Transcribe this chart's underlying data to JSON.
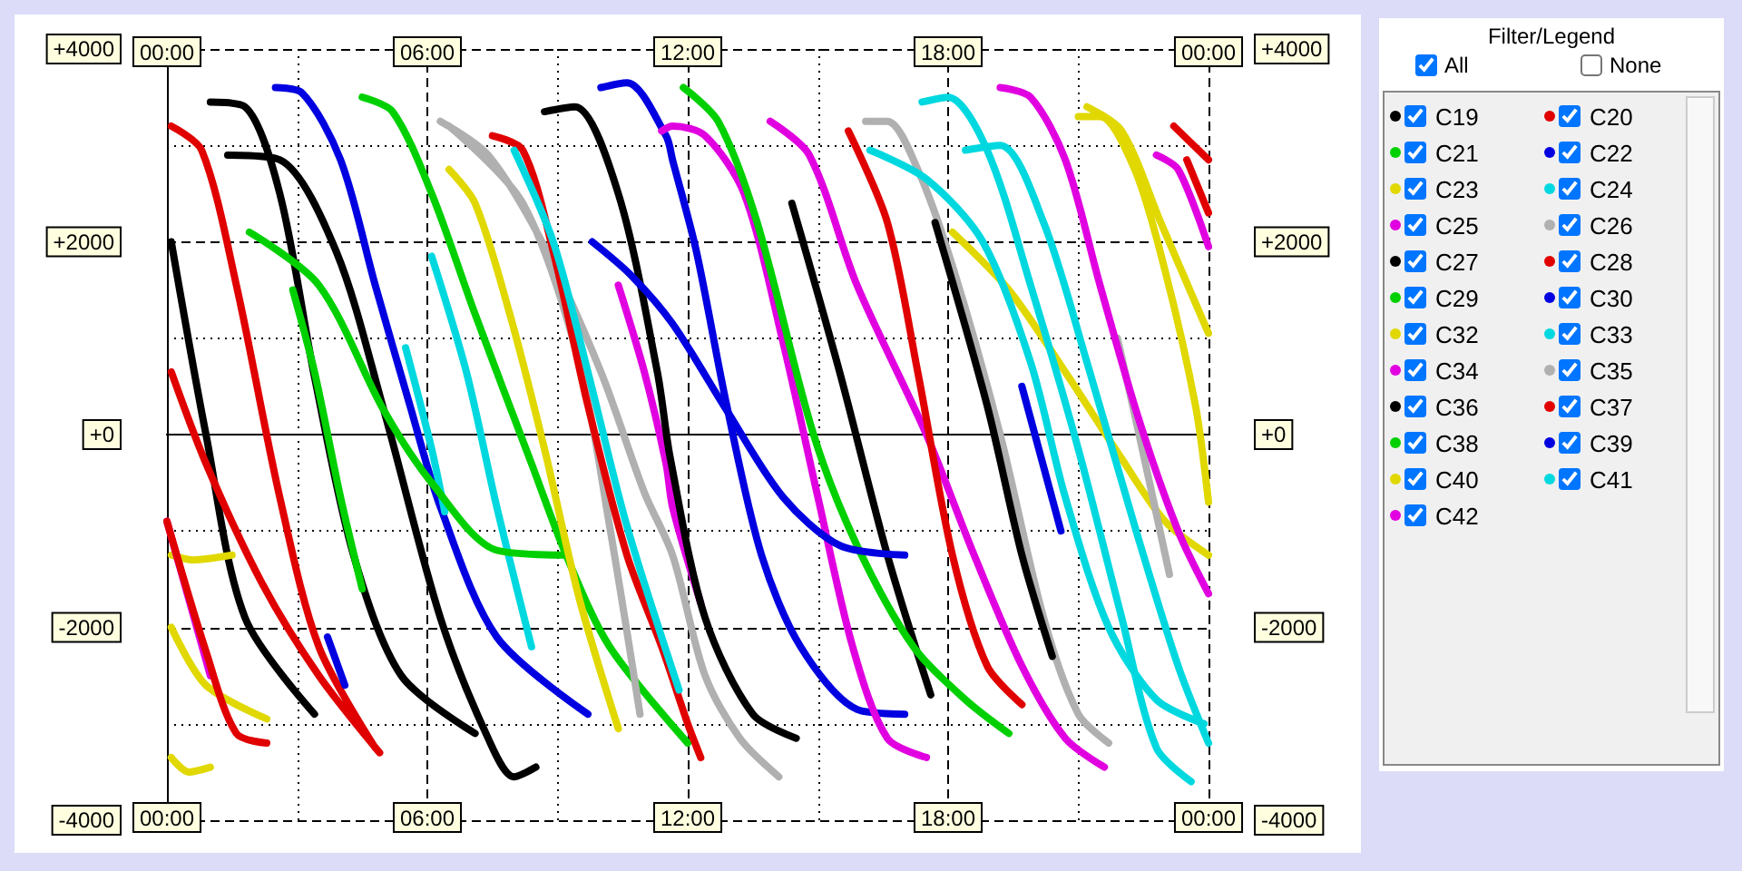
{
  "chart_data": {
    "type": "line",
    "legend_title": "Filter/Legend",
    "legend": "right",
    "grid": true,
    "marker": "none",
    "line_style": "solid",
    "annotations": [
      "All",
      "None"
    ],
    "xlim": [
      0,
      24
    ],
    "xticks": [
      {
        "value": 0,
        "label": "00:00"
      },
      {
        "value": 3,
        "label": null
      },
      {
        "value": 6,
        "label": "06:00"
      },
      {
        "value": 9,
        "label": null
      },
      {
        "value": 12,
        "label": "12:00"
      },
      {
        "value": 15,
        "label": null
      },
      {
        "value": 18,
        "label": "18:00"
      },
      {
        "value": 21,
        "label": null
      },
      {
        "value": 24,
        "label": "00:00"
      }
    ],
    "x2lim": [
      0,
      24
    ],
    "x2ticks": [
      {
        "value": 0,
        "label": "00:00"
      },
      {
        "value": 3,
        "label": null
      },
      {
        "value": 6,
        "label": "06:00"
      },
      {
        "value": 9,
        "label": null
      },
      {
        "value": 12,
        "label": "12:00"
      },
      {
        "value": 15,
        "label": null
      },
      {
        "value": 18,
        "label": "18:00"
      },
      {
        "value": 21,
        "label": null
      },
      {
        "value": 24,
        "label": "00:00"
      }
    ],
    "ylim": [
      -4000,
      4000
    ],
    "yticks": [
      -4000,
      {
        "value": -3000,
        "label": null
      },
      -2000,
      {
        "value": -1000,
        "label": null
      },
      {
        "value": 0,
        "label": "+0"
      },
      {
        "value": 1000,
        "label": null
      },
      {
        "value": 2000,
        "label": "+2000"
      },
      {
        "value": 3000,
        "label": null
      },
      {
        "value": 4000,
        "label": "+4000"
      }
    ],
    "y2lim": [
      -4000,
      4000
    ],
    "y2ticks": [
      -4000,
      {
        "value": -3000,
        "label": null
      },
      -2000,
      {
        "value": -1000,
        "label": null
      },
      {
        "value": 0,
        "label": "+0"
      },
      {
        "value": 1000,
        "label": null
      },
      {
        "value": 2000,
        "label": "+2000"
      },
      {
        "value": 3000,
        "label": null
      },
      {
        "value": 4000,
        "label": "+4000"
      }
    ],
    "series": [
      {
        "name": "C19",
        "color": "#000000",
        "x": [
          0.1,
          0.9,
          1.8,
          3.4,
          null,
          1.0,
          1.8,
          2.6,
          3.4,
          4.3,
          5.4,
          7.1
        ],
        "values": [
          2000,
          0,
          -1900,
          -2900,
          null,
          3450,
          3400,
          2500,
          600,
          -1250,
          -2500,
          -3100
        ]
      },
      {
        "name": "C20",
        "color": "#e00000",
        "x": [
          0.1,
          0.8,
          1.6,
          2.6,
          3.5,
          4.8,
          null,
          0.1,
          0.9,
          2.2,
          3.5,
          4.9
        ],
        "values": [
          3200,
          2950,
          1550,
          -650,
          -2200,
          -3250,
          null,
          650,
          -300,
          -1550,
          -2500,
          -3300
        ]
      },
      {
        "name": "C21",
        "color": "#00d000",
        "x": [
          4.5,
          5.2,
          6.1,
          7.1,
          8.4,
          9.2,
          10.2,
          12.0
        ],
        "values": [
          3500,
          3350,
          2500,
          1250,
          -300,
          -1250,
          -2200,
          -3200
        ]
      },
      {
        "name": "C22",
        "color": "#0000e0",
        "x": [
          2.5,
          3.1,
          4.0,
          4.8,
          5.6,
          6.3,
          7.6,
          9.7,
          null,
          3.7,
          4.1
        ],
        "values": [
          3600,
          3550,
          2850,
          1550,
          300,
          -750,
          -2100,
          -2900,
          null,
          -2100,
          -2600
        ]
      },
      {
        "name": "C23",
        "color": "#e0d800",
        "x": [
          0.1,
          0.6,
          1.5,
          null,
          0.1,
          0.9,
          2.3,
          null,
          0.1,
          0.5,
          1.0
        ],
        "values": [
          -1250,
          -1300,
          -1250,
          null,
          -2000,
          -2600,
          -2950,
          null,
          -3350,
          -3500,
          -3450
        ]
      },
      {
        "name": "C24",
        "color": "#00d8e0",
        "x": [
          6.1,
          6.9,
          7.6,
          8.4,
          null,
          5.5,
          6.1,
          6.4
        ],
        "values": [
          1850,
          650,
          -750,
          -2200,
          null,
          900,
          -150,
          -800
        ]
      },
      {
        "name": "C25",
        "color": "#e000e0",
        "x": [
          0,
          0.5,
          1.0,
          null,
          10.4,
          11.0,
          11.5,
          11.65,
          12.3
        ],
        "values": [
          -900,
          -1700,
          -2500,
          null,
          1550,
          650,
          -300,
          -750,
          -1750
        ]
      },
      {
        "name": "C26",
        "color": "#b0b0b0",
        "x": [
          6.3,
          7.4,
          8.7,
          10.0,
          11.0,
          11.65,
          12.4,
          13.2,
          14.1,
          null,
          6.5,
          8.2,
          9.5,
          10.2,
          10.9
        ],
        "values": [
          3250,
          2900,
          1950,
          650,
          -600,
          -1250,
          -2500,
          -3150,
          -3550,
          null,
          3200,
          2400,
          750,
          -950,
          -2900
        ]
      },
      {
        "name": "C27",
        "color": "#000000",
        "x": [
          1.4,
          2.6,
          3.9,
          5.0,
          6.3,
          7.4,
          8.0,
          8.5,
          null,
          8.7,
          9.4,
          10.4,
          11.3,
          11.6,
          12.4,
          13.5,
          14.5
        ],
        "values": [
          2900,
          2850,
          1900,
          250,
          -1900,
          -3150,
          -3550,
          -3450,
          null,
          3350,
          3400,
          2500,
          650,
          -250,
          -1900,
          -2900,
          -3150
        ]
      },
      {
        "name": "C28",
        "color": "#e00000",
        "x": [
          0,
          0.9,
          1.6,
          2.3,
          null,
          7.5,
          8.2,
          8.9,
          9.7,
          10.6,
          11.4,
          12.0,
          12.3
        ],
        "values": [
          -900,
          -2250,
          -3100,
          -3200,
          null,
          3100,
          2950,
          1900,
          300,
          -1250,
          -2200,
          -3000,
          -3350
        ]
      },
      {
        "name": "C29",
        "color": "#00d000",
        "x": [
          1.9,
          3.5,
          5.0,
          6.1,
          7.6,
          9.2,
          null,
          2.9,
          3.4,
          4.0,
          4.5
        ],
        "values": [
          2100,
          1550,
          250,
          -500,
          -1200,
          -1250,
          null,
          1500,
          650,
          -650,
          -1600
        ]
      },
      {
        "name": "C30",
        "color": "#0000e0",
        "x": [
          10.0,
          10.6,
          11.5,
          11.65,
          12.2,
          12.9,
          13.7,
          14.6,
          15.9,
          17.0
        ],
        "values": [
          3600,
          3650,
          3100,
          2850,
          1900,
          300,
          -1250,
          -2200,
          -2850,
          -2900
        ]
      },
      {
        "name": "C32",
        "color": "#e0d800",
        "x": [
          6.5,
          7.1,
          7.9,
          8.7,
          9.5,
          10.4,
          null,
          18.1,
          19.4,
          20.7,
          22.0,
          23.0,
          24.0
        ],
        "values": [
          2750,
          2400,
          1250,
          -150,
          -1700,
          -3050,
          null,
          2100,
          1500,
          650,
          -250,
          -900,
          -1250
        ]
      },
      {
        "name": "C33",
        "color": "#00d8e0",
        "x": [
          8.0,
          8.9,
          9.7,
          10.6,
          11.8,
          null,
          17.4,
          18.0,
          18.9,
          19.9,
          21.0,
          22.0,
          22.8,
          23.6
        ],
        "values": [
          2950,
          2000,
          650,
          -950,
          -2650,
          null,
          3450,
          3500,
          2950,
          1550,
          -150,
          -1900,
          -3250,
          -3600
        ]
      },
      {
        "name": "C34",
        "color": "#e000e0",
        "x": [
          11.4,
          11.65,
          12.4,
          13.3,
          14.2,
          15.0,
          15.8,
          16.6,
          17.5,
          null,
          13.9,
          14.8,
          15.9,
          17.5,
          18.6,
          19.7,
          20.7,
          21.6
        ],
        "values": [
          3150,
          3200,
          3100,
          2500,
          950,
          -650,
          -2200,
          -3150,
          -3350,
          null,
          3250,
          2900,
          1550,
          0,
          -1250,
          -2400,
          -3150,
          -3450
        ]
      },
      {
        "name": "C35",
        "color": "#b0b0b0",
        "x": [
          16.1,
          16.6,
          17.3,
          18.1,
          19.2,
          20.2,
          21.0,
          21.7,
          null,
          21.9,
          22.4,
          23.1
        ],
        "values": [
          3250,
          3250,
          2750,
          1750,
          0,
          -1900,
          -2900,
          -3200,
          null,
          1000,
          0,
          -1450
        ]
      },
      {
        "name": "C36",
        "color": "#000000",
        "x": [
          14.4,
          15.5,
          16.6,
          17.6,
          null,
          17.7,
          18.9,
          19.7,
          20.4
        ],
        "values": [
          2400,
          650,
          -1250,
          -2700,
          null,
          2200,
          300,
          -1250,
          -2300
        ]
      },
      {
        "name": "C37",
        "color": "#e00000",
        "x": [
          15.7,
          16.6,
          17.3,
          18.1,
          18.9,
          19.7,
          null,
          23.2,
          24.0,
          null,
          23.5,
          24.0
        ],
        "values": [
          3150,
          2200,
          650,
          -1250,
          -2400,
          -2800,
          null,
          3200,
          2850,
          null,
          2850,
          2300
        ]
      },
      {
        "name": "C38",
        "color": "#00d000",
        "x": [
          11.9,
          12.7,
          13.6,
          14.9,
          15.9,
          17.2,
          18.4,
          19.4
        ],
        "values": [
          3600,
          3250,
          2200,
          0,
          -1150,
          -2200,
          -2750,
          -3100
        ]
      },
      {
        "name": "C39",
        "color": "#0000e0",
        "x": [
          9.8,
          10.7,
          11.65,
          12.9,
          14.2,
          15.5,
          17.0,
          null,
          19.7,
          20.6
        ],
        "values": [
          2000,
          1650,
          1150,
          250,
          -650,
          -1150,
          -1250,
          null,
          500,
          -1000
        ]
      },
      {
        "name": "C40",
        "color": "#e0d800",
        "x": [
          21.0,
          21.5,
          22.3,
          23.0,
          23.7,
          24.0,
          null,
          21.2,
          22.0,
          22.9,
          24.0
        ],
        "values": [
          3300,
          3300,
          2750,
          1700,
          300,
          -700,
          null,
          3400,
          3150,
          2200,
          1050
        ]
      },
      {
        "name": "C41",
        "color": "#00d8e0",
        "x": [
          16.2,
          17.5,
          18.8,
          19.9,
          20.7,
          21.7,
          22.8,
          23.9,
          null,
          18.4,
          19.2,
          20.2,
          21.2,
          22.3,
          23.3,
          24.0
        ],
        "values": [
          2950,
          2650,
          2000,
          750,
          -650,
          -2000,
          -2750,
          -3000,
          null,
          2950,
          3000,
          2200,
          750,
          -950,
          -2400,
          -3200
        ]
      },
      {
        "name": "C42",
        "color": "#e000e0",
        "x": [
          19.2,
          19.9,
          20.7,
          21.5,
          22.4,
          23.3,
          24.0,
          null,
          22.8,
          23.3,
          24.0
        ],
        "values": [
          3600,
          3500,
          2850,
          1550,
          150,
          -1000,
          -1650,
          null,
          2900,
          2750,
          1950
        ]
      }
    ]
  }
}
